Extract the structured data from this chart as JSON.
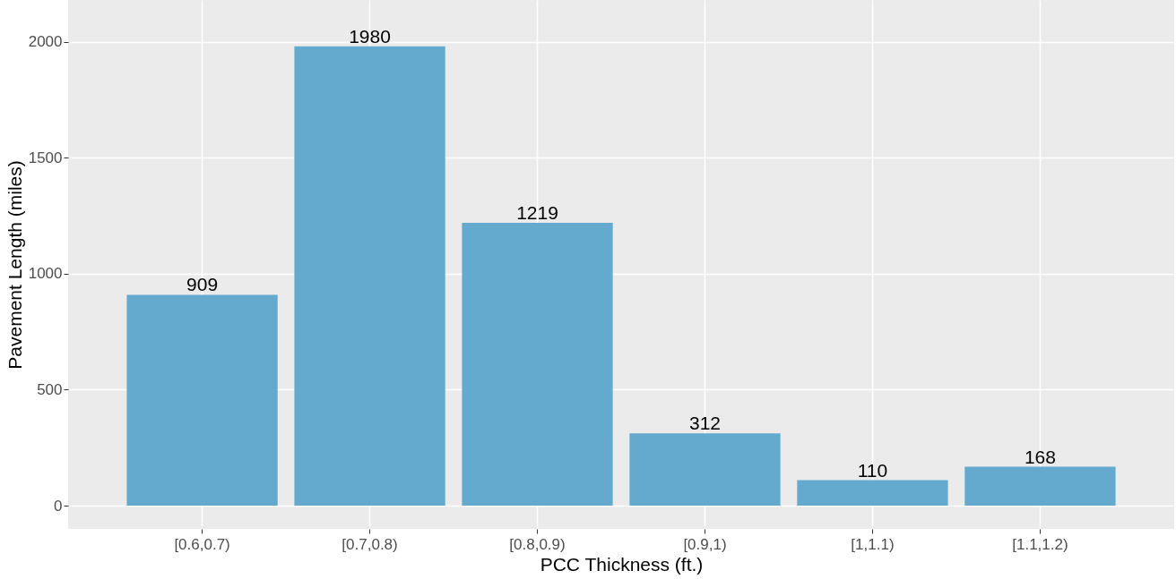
{
  "chart_data": {
    "type": "bar",
    "xlabel": "PCC Thickness (ft.)",
    "ylabel": "Pavement Length (miles)",
    "categories": [
      "[0.6,0.7)",
      "[0.7,0.8)",
      "[0.8,0.9)",
      "[0.9,1)",
      "[1,1.1)",
      "[1.1,1.2)"
    ],
    "values": [
      909,
      1980,
      1219,
      312,
      110,
      168
    ],
    "color": "#64aacf",
    "ylim": [
      -100,
      2180
    ],
    "yticks": [
      0,
      500,
      1000,
      1500,
      2000
    ],
    "grid": true,
    "data_labels": true
  }
}
